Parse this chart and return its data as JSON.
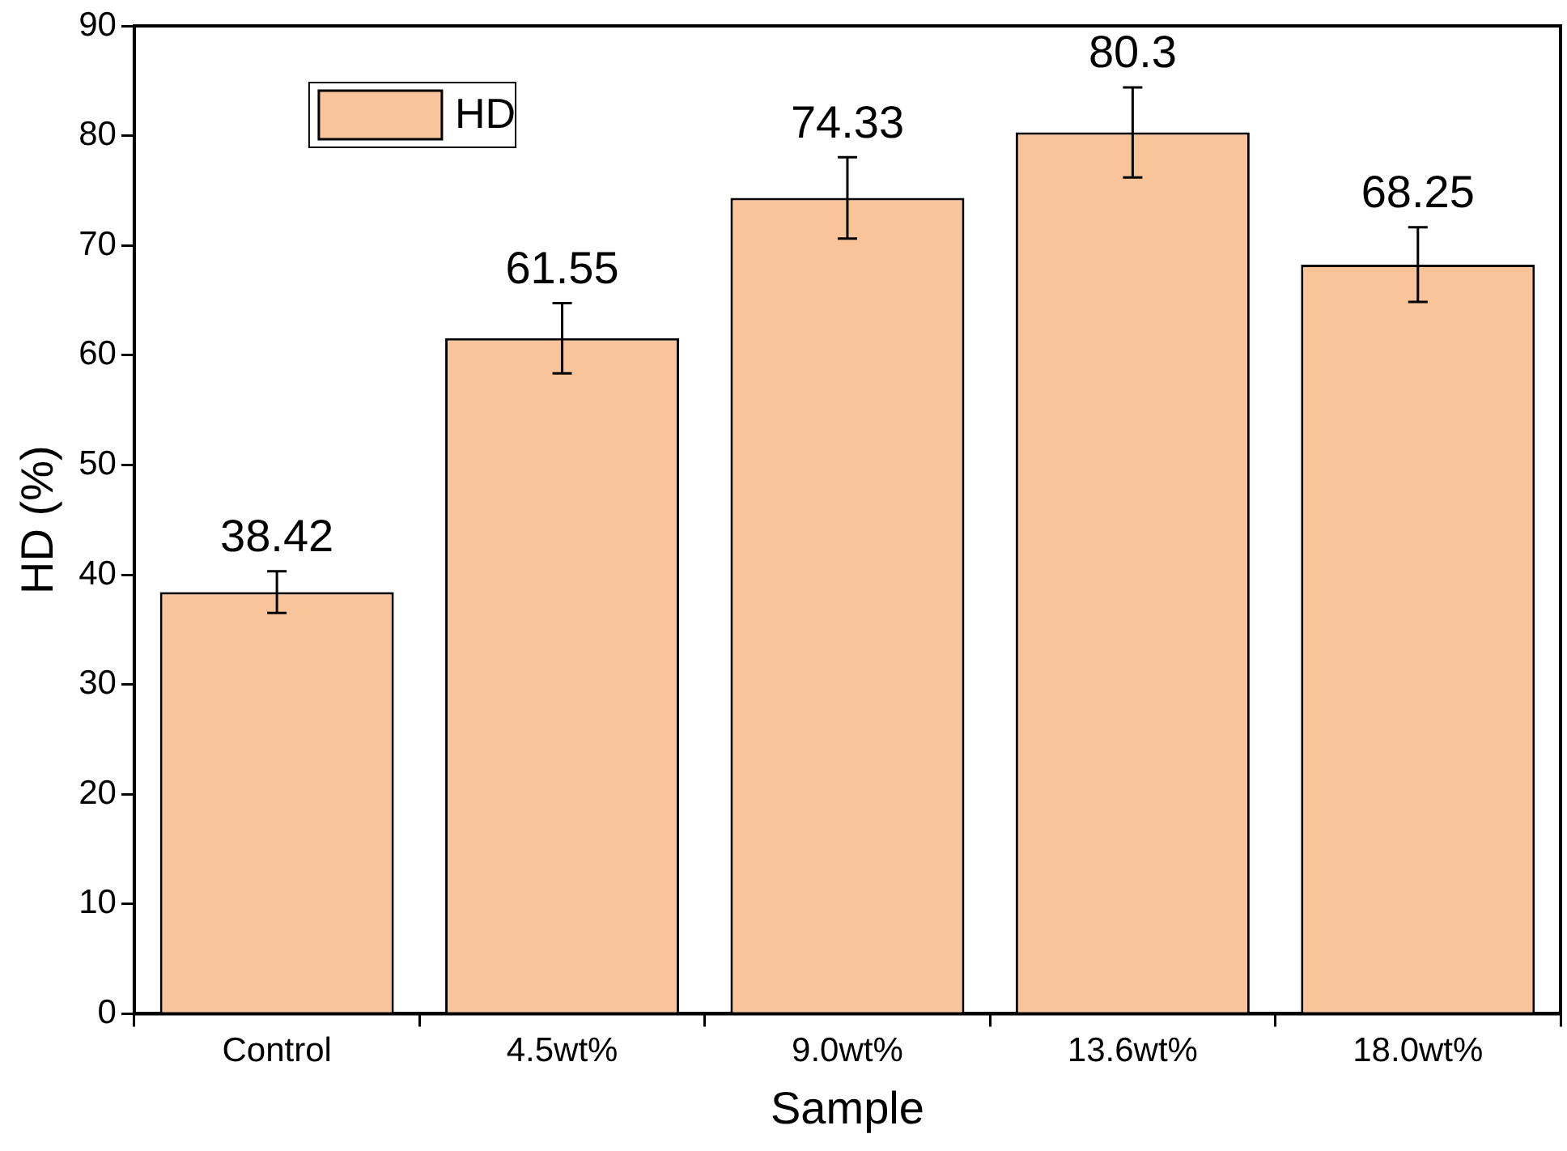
{
  "chart_data": {
    "type": "bar",
    "xlabel": "Sample",
    "ylabel": "HD (%)",
    "categories": [
      "Control",
      "4.5wt%",
      "9.0wt%",
      "13.6wt%",
      "18.0wt%"
    ],
    "series": [
      {
        "name": "HD",
        "color": "#f9c499",
        "values": [
          38.42,
          61.55,
          74.33,
          80.3,
          68.25
        ],
        "errors": [
          1.9,
          3.2,
          3.7,
          4.1,
          3.4
        ]
      }
    ],
    "ylim": [
      0,
      90
    ],
    "yticks": [
      0,
      10,
      20,
      30,
      40,
      50,
      60,
      70,
      80,
      90
    ],
    "data_labels": true,
    "grid": false,
    "legend": "top left"
  }
}
